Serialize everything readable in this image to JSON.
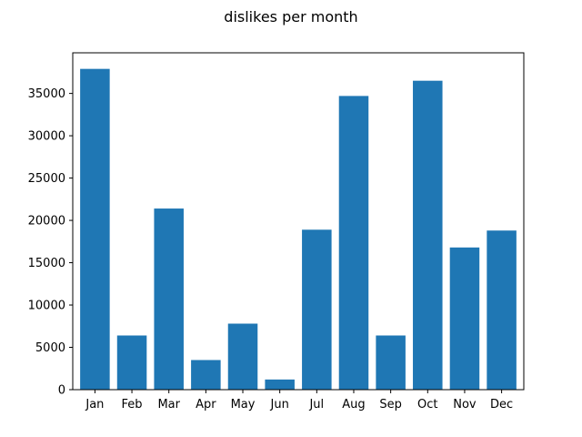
{
  "chart_data": {
    "type": "bar",
    "title": "dislikes per month",
    "xlabel": "",
    "ylabel": "",
    "categories": [
      "Jan",
      "Feb",
      "Mar",
      "Apr",
      "May",
      "Jun",
      "Jul",
      "Aug",
      "Sep",
      "Oct",
      "Nov",
      "Dec"
    ],
    "values": [
      37900,
      6400,
      21400,
      3500,
      7800,
      1200,
      18900,
      34700,
      6400,
      36500,
      16800,
      18800
    ],
    "ylim": [
      0,
      39800
    ],
    "yticks": [
      0,
      5000,
      10000,
      15000,
      20000,
      25000,
      30000,
      35000
    ],
    "grid": false,
    "legend": "none",
    "bar_color": "#1f77b4"
  }
}
